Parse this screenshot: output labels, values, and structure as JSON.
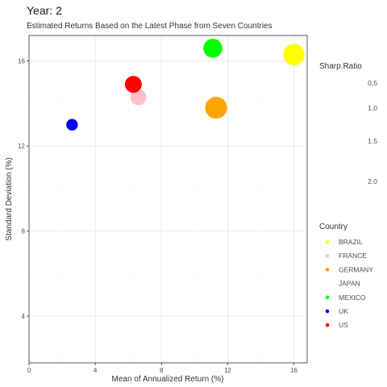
{
  "chart_data": {
    "type": "scatter",
    "title": "Year: 2",
    "subtitle": "Estimated Returns Based on the Latest Phase from Seven Countries",
    "xlabel": "Mean of Annualized Return (%)",
    "ylabel": "Standard Deviation (%)",
    "xlim": [
      0,
      16.8
    ],
    "ylim": [
      1.8,
      17.2
    ],
    "x_ticks": [
      0,
      4,
      8,
      12,
      16
    ],
    "y_ticks": [
      4,
      8,
      12,
      16
    ],
    "x_tick_labels": [
      "0",
      "4",
      "8",
      "12",
      "16"
    ],
    "y_tick_labels": [
      "4",
      "8",
      "12",
      "16"
    ],
    "grid": true,
    "size_legend": {
      "title": "Sharp.Ratio",
      "labels": [
        "0.5",
        "1.0",
        "1.5",
        "2.0"
      ]
    },
    "color_legend": {
      "title": "Country",
      "placement": "right"
    },
    "series": [
      {
        "name": "BRAZIL",
        "color": "#ffff00",
        "x": 16.0,
        "y": 16.3,
        "size": 0.75
      },
      {
        "name": "FRANCE",
        "color": "#ffc0cb",
        "x": 6.6,
        "y": 14.3,
        "size": 0.45
      },
      {
        "name": "GERMANY",
        "color": "#ffa500",
        "x": 11.3,
        "y": 13.8,
        "size": 0.78
      },
      {
        "name": "JAPAN",
        "color": "#ffffff",
        "x": null,
        "y": null,
        "size": null
      },
      {
        "name": "MEXICO",
        "color": "#00ff00",
        "x": 11.1,
        "y": 16.6,
        "size": 0.62
      },
      {
        "name": "UK",
        "color": "#0000ff",
        "x": 2.6,
        "y": 13.0,
        "size": 0.2
      },
      {
        "name": "US",
        "color": "#ff0000",
        "x": 6.3,
        "y": 14.9,
        "size": 0.5
      }
    ]
  }
}
